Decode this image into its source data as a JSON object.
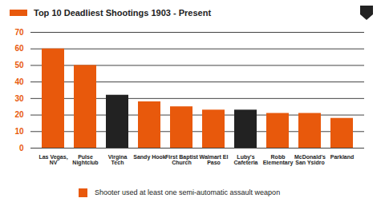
{
  "chart_data": {
    "type": "bar",
    "title": "Top 10 Deadliest Shootings 1903 - Present",
    "categories": [
      "Las Vegas, NV",
      "Pulse Nightclub",
      "Virgina Tech",
      "Sandy Hook",
      "First Baptist Church",
      "Walmart El Paso",
      "Luby's Cafeteria",
      "Robb Elementary",
      "McDonald's San Ysidro",
      "Parkland"
    ],
    "values": [
      60,
      50,
      32,
      28,
      25,
      23,
      23,
      21,
      21,
      18
    ],
    "colors": [
      "#e8590c",
      "#e8590c",
      "#222222",
      "#e8590c",
      "#e8590c",
      "#e8590c",
      "#222222",
      "#e8590c",
      "#e8590c",
      "#e8590c"
    ],
    "legend_entries": [
      {
        "label": "Shooter used at least one semi-automatic assault weapon",
        "color": "#e8590c"
      }
    ],
    "ylim": [
      0,
      70
    ],
    "yticks": [
      0,
      10,
      20,
      30,
      40,
      50,
      60,
      70
    ],
    "grid": true
  }
}
